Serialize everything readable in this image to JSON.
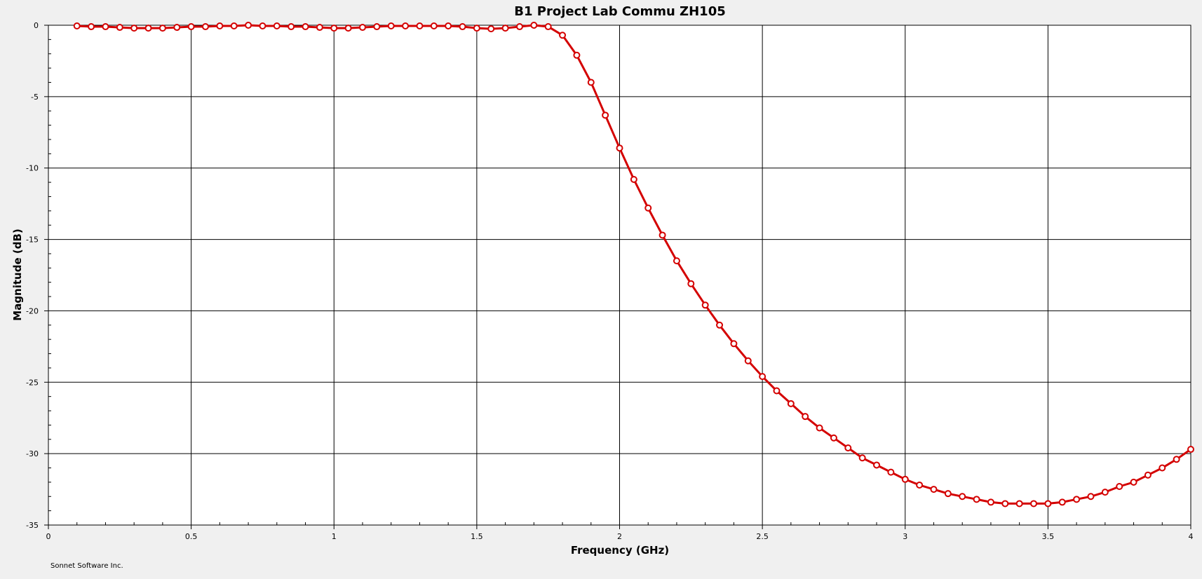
{
  "chart_data": {
    "type": "line",
    "title": "B1 Project Lab Commu ZH105",
    "xlabel": "Frequency (GHz)",
    "ylabel": "Magnitude (dB)",
    "xlim": [
      0,
      4
    ],
    "ylim": [
      -35,
      0
    ],
    "x_major_ticks": [
      0,
      0.5,
      1,
      1.5,
      2,
      2.5,
      3,
      3.5,
      4
    ],
    "x_tick_labels": [
      "0",
      "0.5",
      "1",
      "1.5",
      "2",
      "2.5",
      "3",
      "3.5",
      "4"
    ],
    "y_major_ticks": [
      0,
      -5,
      -10,
      -15,
      -20,
      -25,
      -30,
      -35
    ],
    "y_tick_labels": [
      "0",
      "-5",
      "-10",
      "-15",
      "-20",
      "-25",
      "-30",
      "-35"
    ],
    "grid": true,
    "series": [
      {
        "color": "#d40000",
        "marker": "circle",
        "x": [
          0.1,
          0.15,
          0.2,
          0.25,
          0.3,
          0.35,
          0.4,
          0.45,
          0.5,
          0.55,
          0.6,
          0.65,
          0.7,
          0.75,
          0.8,
          0.85,
          0.9,
          0.95,
          1.0,
          1.05,
          1.1,
          1.15,
          1.2,
          1.25,
          1.3,
          1.35,
          1.4,
          1.45,
          1.5,
          1.55,
          1.6,
          1.65,
          1.7,
          1.75,
          1.8,
          1.85,
          1.9,
          1.95,
          2.0,
          2.05,
          2.1,
          2.15,
          2.2,
          2.25,
          2.3,
          2.35,
          2.4,
          2.45,
          2.5,
          2.55,
          2.6,
          2.65,
          2.7,
          2.75,
          2.8,
          2.85,
          2.9,
          2.95,
          3.0,
          3.05,
          3.1,
          3.15,
          3.2,
          3.25,
          3.3,
          3.35,
          3.4,
          3.45,
          3.5,
          3.55,
          3.6,
          3.65,
          3.7,
          3.75,
          3.8,
          3.85,
          3.9,
          3.95,
          4.0
        ],
        "y": [
          -0.05,
          -0.1,
          -0.1,
          -0.15,
          -0.2,
          -0.2,
          -0.2,
          -0.15,
          -0.1,
          -0.1,
          -0.05,
          -0.05,
          0.0,
          -0.05,
          -0.05,
          -0.1,
          -0.1,
          -0.15,
          -0.2,
          -0.2,
          -0.15,
          -0.1,
          -0.05,
          -0.05,
          -0.05,
          -0.05,
          -0.05,
          -0.1,
          -0.2,
          -0.25,
          -0.2,
          -0.1,
          0.0,
          -0.1,
          -0.7,
          -2.1,
          -4.0,
          -6.3,
          -8.6,
          -10.8,
          -12.8,
          -14.7,
          -16.5,
          -18.1,
          -19.6,
          -21.0,
          -22.3,
          -23.5,
          -24.6,
          -25.6,
          -26.5,
          -27.4,
          -28.2,
          -28.9,
          -29.6,
          -30.3,
          -30.8,
          -31.3,
          -31.8,
          -32.2,
          -32.5,
          -32.8,
          -33.0,
          -33.2,
          -33.4,
          -33.5,
          -33.5,
          -33.5,
          -33.5,
          -33.4,
          -33.2,
          -33.0,
          -32.7,
          -32.3,
          -32.0,
          -31.5,
          -31.0,
          -30.4,
          -29.7
        ]
      }
    ]
  },
  "footer": {
    "credit": "Sonnet Software Inc."
  },
  "colors": {
    "background": "#f0f0f0",
    "plot_background": "#ffffff",
    "grid": "#000000",
    "series": "#d40000"
  }
}
